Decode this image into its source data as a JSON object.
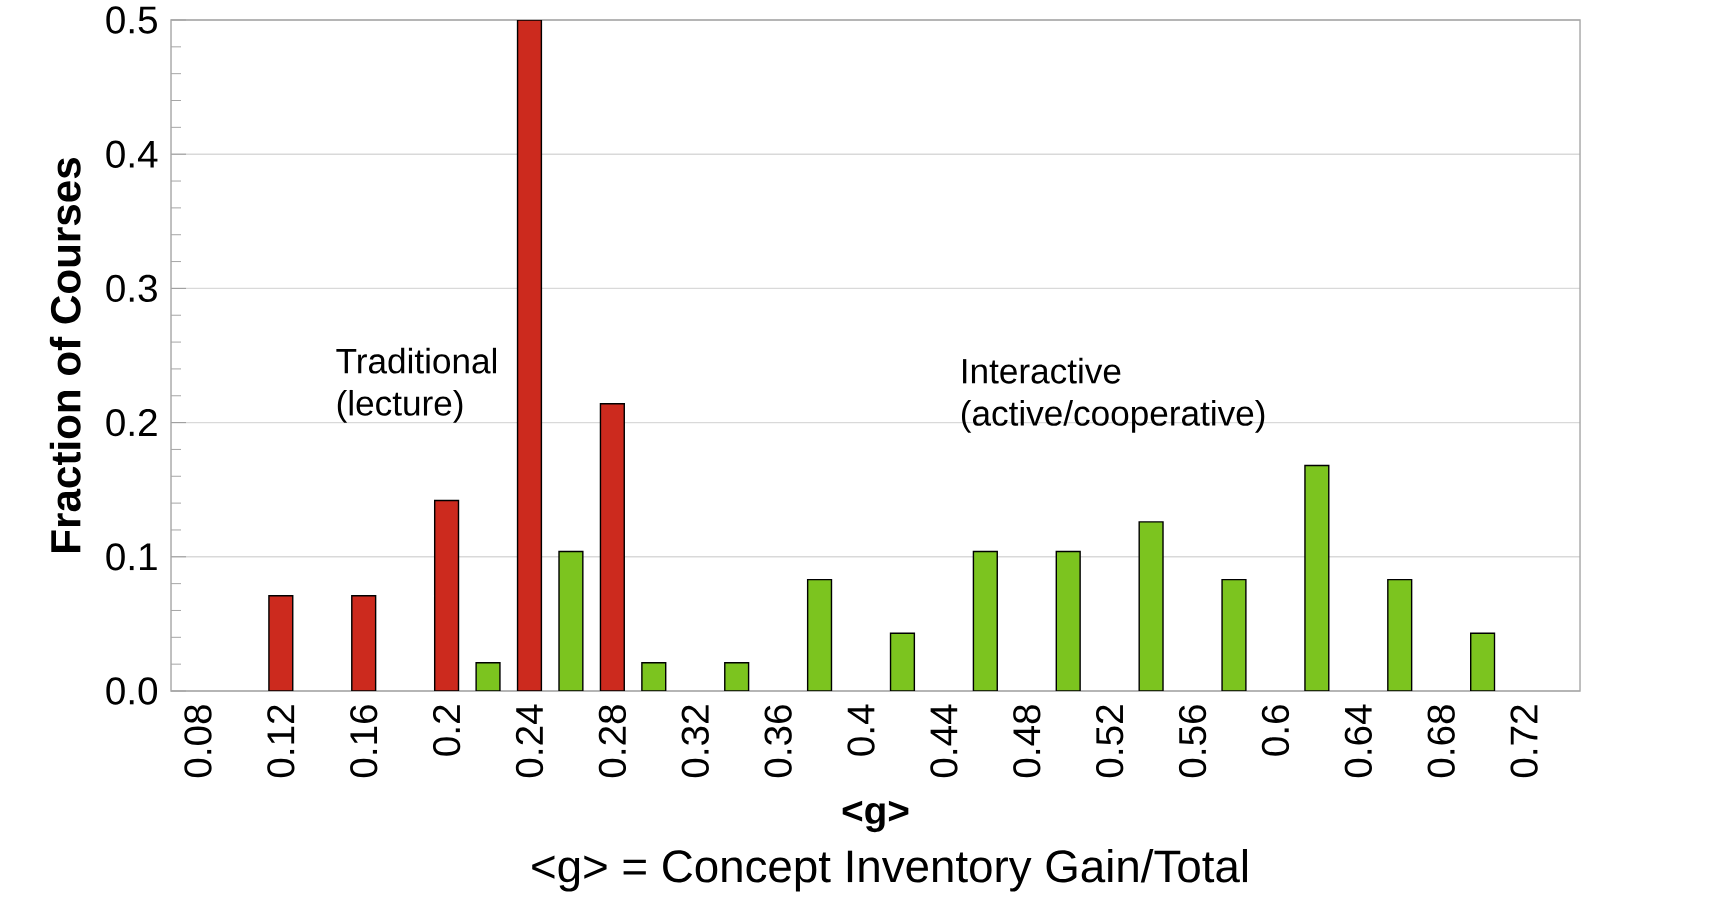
{
  "chart_data": {
    "type": "bar",
    "xlabel": "<g>",
    "ylabel": "Fraction of Courses",
    "annotations": [
      "Traditional (lecture)",
      "Interactive (active/cooperative)",
      "<g> = Concept Inventory Gain/Total"
    ],
    "series": [
      {
        "x": [
          0.12,
          0.16,
          0.2,
          0.24,
          0.28
        ],
        "values": [
          0.071,
          0.071,
          0.142,
          0.5,
          0.214
        ],
        "color": "#cc2a1e"
      },
      {
        "x": [
          0.22,
          0.26,
          0.3,
          0.34,
          0.38,
          0.42,
          0.46,
          0.5,
          0.54,
          0.58,
          0.62,
          0.66,
          0.7
        ],
        "values": [
          0.021,
          0.104,
          0.021,
          0.021,
          0.083,
          0.043,
          0.104,
          0.104,
          0.126,
          0.083,
          0.168,
          0.083,
          0.043
        ],
        "color": "#7cc41f"
      }
    ],
    "xlim": [
      0.067,
      0.747
    ],
    "ylim": [
      0,
      0.5
    ],
    "xticks": [
      0.08,
      0.12,
      0.16,
      0.2,
      0.24,
      0.28,
      0.32,
      0.36,
      0.4,
      0.44,
      0.48,
      0.52,
      0.56,
      0.6,
      0.64,
      0.68,
      0.72
    ],
    "yticks": [
      {
        "value": 0,
        "label": "0.0"
      },
      0.1,
      0.2,
      0.3,
      0.4,
      0.5
    ],
    "grid": "y"
  }
}
